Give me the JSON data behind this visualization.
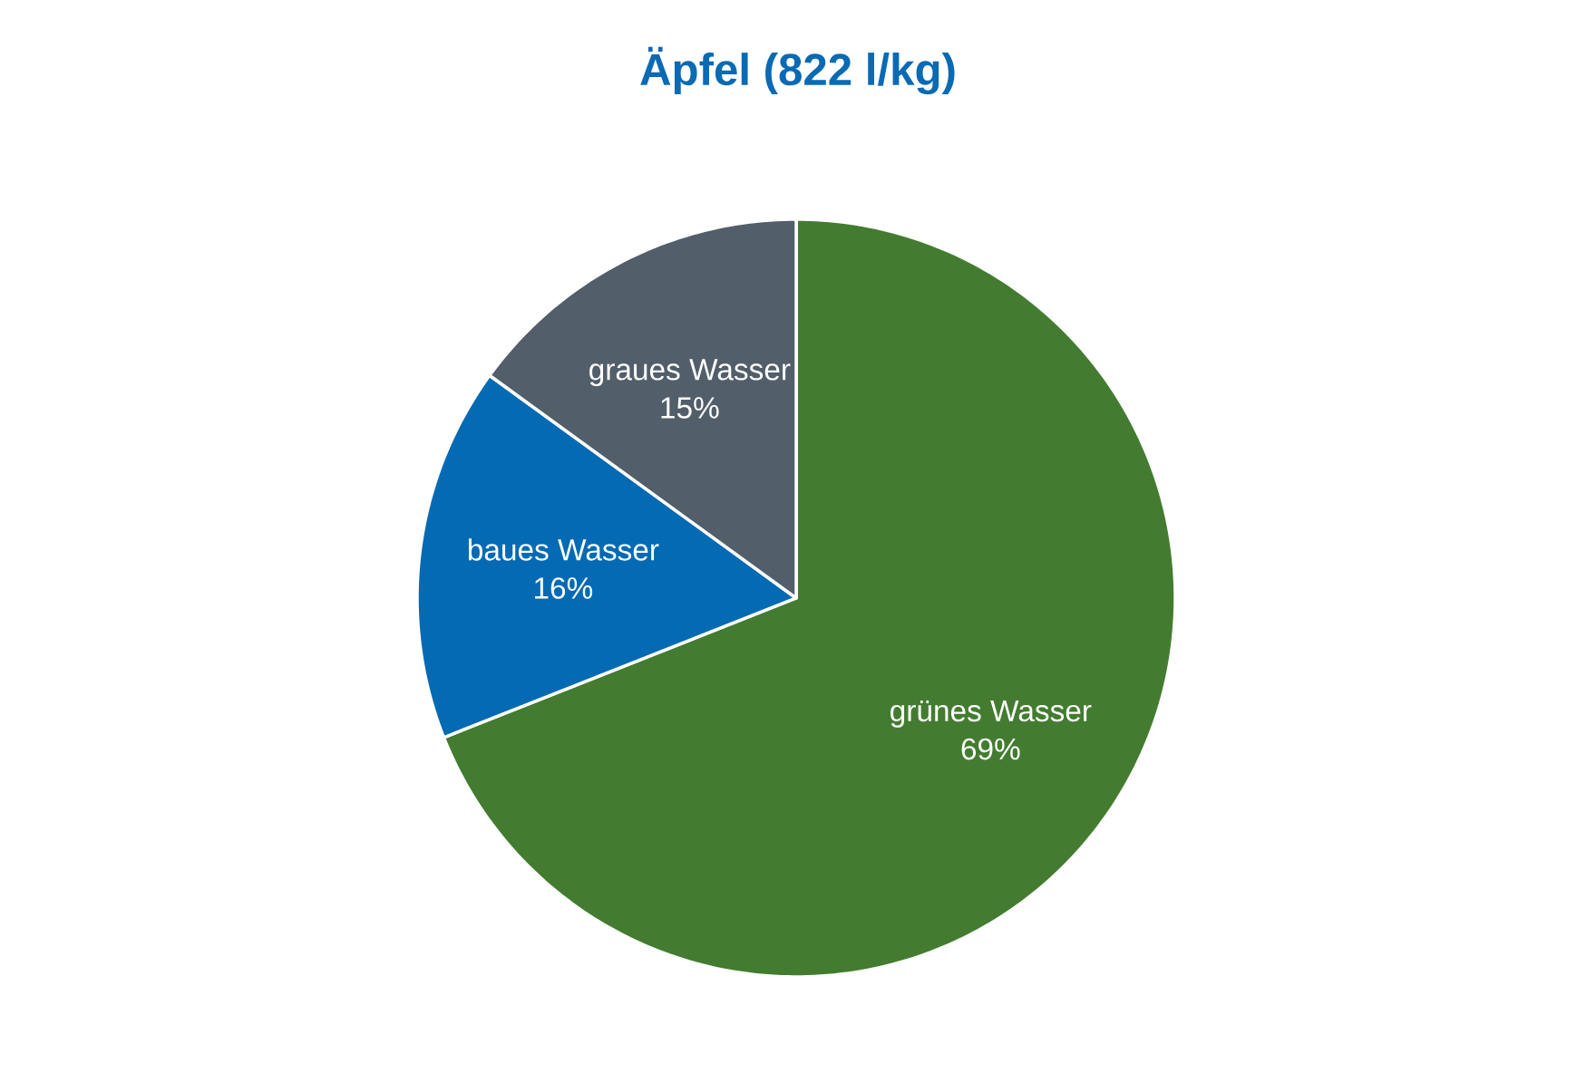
{
  "chart_data": {
    "type": "pie",
    "title": "Äpfel (822 l/kg)",
    "categories": [
      "grünes Wasser",
      "baues Wasser",
      "graues Wasser"
    ],
    "values": [
      69,
      16,
      15
    ],
    "colors": [
      "#437c30",
      "#046ab3",
      "#525e6a"
    ],
    "value_labels": [
      "69%",
      "16%",
      "15%"
    ]
  }
}
